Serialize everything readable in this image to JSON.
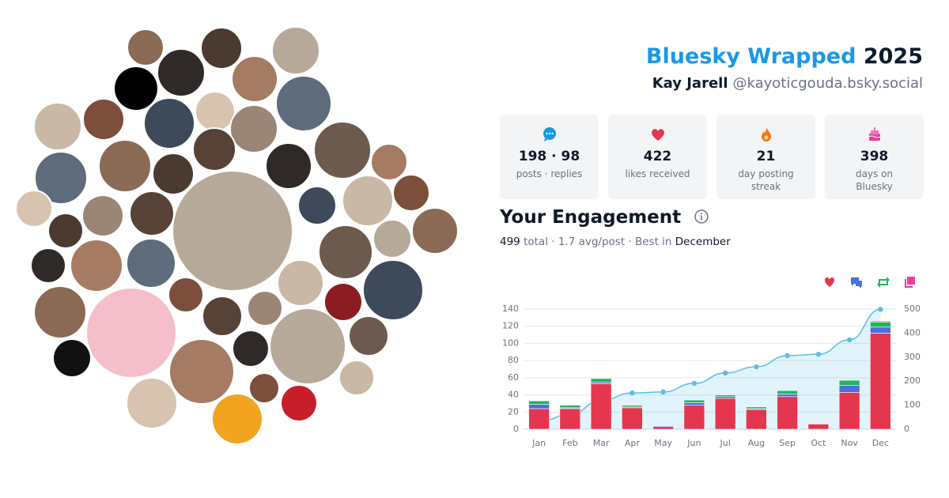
{
  "header": {
    "title": "Bluesky Wrapped",
    "year": "2025",
    "name": "Kay Jarell",
    "handle": "@kayoticgouda.bsky.social"
  },
  "stats": [
    {
      "value": "198 · 98",
      "label": "posts · replies"
    },
    {
      "value": "422",
      "label": "likes received"
    },
    {
      "value": "21",
      "label": "day posting streak"
    },
    {
      "value": "398",
      "label": "days on Bluesky"
    }
  ],
  "engagement": {
    "title": "Your Engagement",
    "total": "499",
    "summary": "total · 1.7 avg/post · Best in",
    "best": "December"
  },
  "chart_data": {
    "type": "bar",
    "categories": [
      "Jan",
      "Feb",
      "Mar",
      "Apr",
      "May",
      "Jun",
      "Jul",
      "Aug",
      "Sep",
      "Oct",
      "Nov",
      "Dec"
    ],
    "series": [
      {
        "color": "#e5364f",
        "values": [
          24,
          24,
          53,
          25,
          3,
          28,
          36,
          23,
          38,
          6,
          43,
          112
        ]
      },
      {
        "color": "#4a6fe0",
        "values": [
          5,
          1,
          2,
          1,
          1,
          3,
          2,
          1,
          3,
          0,
          8,
          7
        ]
      },
      {
        "color": "#22b45a",
        "values": [
          4,
          3,
          4,
          2,
          0,
          3,
          2,
          2,
          4,
          0,
          6,
          6
        ]
      },
      {
        "color": "#ec3f9c",
        "values": [
          0,
          0,
          0,
          0,
          0,
          0,
          0,
          0,
          0,
          0,
          0,
          1
        ]
      },
      {
        "type": "line",
        "axis": "y2",
        "color": "#5bbde8",
        "values": [
          33,
          61,
          120,
          151,
          155,
          191,
          234,
          260,
          306,
          312,
          372,
          499
        ]
      }
    ],
    "ylim": [
      0,
      140
    ],
    "yticks": [
      0,
      20,
      40,
      60,
      80,
      100,
      120,
      140
    ],
    "y2lim": [
      0,
      500
    ],
    "y2ticks": [
      0,
      100,
      200,
      300,
      400,
      500
    ],
    "grid": true
  }
}
